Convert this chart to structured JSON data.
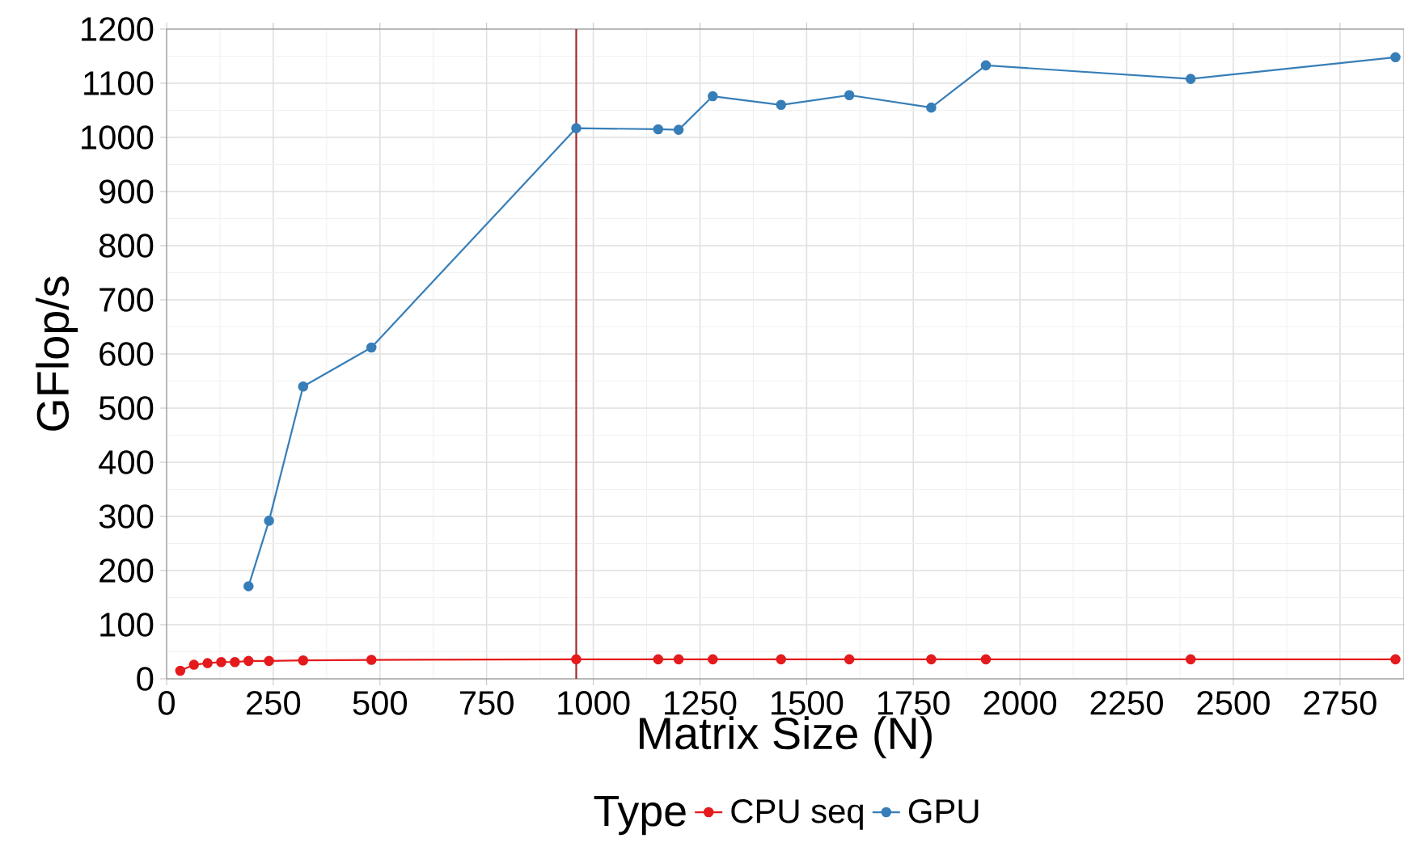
{
  "chart_data": {
    "type": "line",
    "xlabel": "Matrix Size (N)",
    "ylabel": "GFlop/s",
    "legend_title": "Type",
    "xlim": [
      0,
      2900
    ],
    "ylim": [
      0,
      1200
    ],
    "xticks": [
      0,
      250,
      500,
      750,
      1000,
      1250,
      1500,
      1750,
      2000,
      2250,
      2500,
      2750
    ],
    "yticks": [
      0,
      100,
      200,
      300,
      400,
      500,
      600,
      700,
      800,
      900,
      1000,
      1100,
      1200
    ],
    "grid": true,
    "legend": "bottom",
    "marker": "circle",
    "line_style": "solid",
    "ref_lines": [
      {
        "axis": "x",
        "value": 960,
        "color": "#a0282a"
      }
    ],
    "series": [
      {
        "name": "CPU seq",
        "color": "#e41a1c",
        "x": [
          32,
          64,
          96,
          128,
          160,
          192,
          240,
          320,
          480,
          960,
          1152,
          1200,
          1280,
          1440,
          1600,
          1792,
          1920,
          2400,
          2880
        ],
        "values": [
          15,
          26,
          29,
          31,
          31,
          33,
          33,
          34,
          35,
          36,
          36,
          36,
          36,
          36,
          36,
          36,
          36,
          36,
          36
        ]
      },
      {
        "name": "GPU",
        "color": "#377eb8",
        "x": [
          192,
          240,
          320,
          480,
          960,
          1152,
          1200,
          1280,
          1440,
          1600,
          1792,
          1920,
          2400,
          2880
        ],
        "values": [
          171,
          292,
          540,
          612,
          1017,
          1015,
          1014,
          1076,
          1060,
          1078,
          1055,
          1133,
          1108,
          1148
        ]
      }
    ]
  }
}
